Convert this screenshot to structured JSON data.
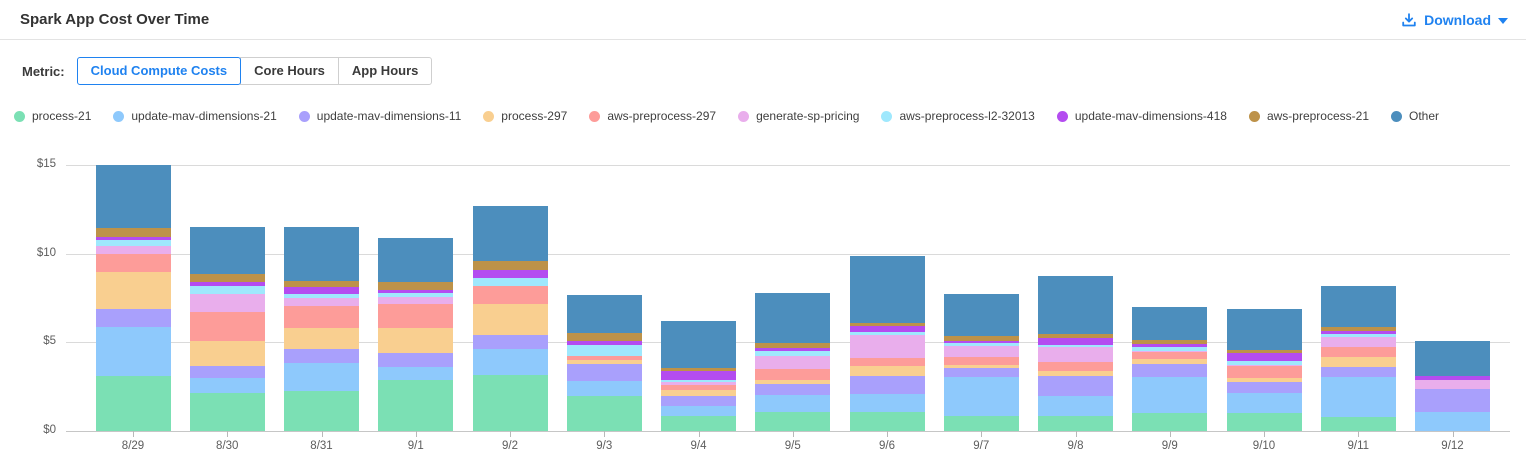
{
  "header": {
    "title": "Spark App Cost Over Time",
    "download": {
      "label": "Download",
      "icon": "download-icon",
      "caret_icon": "caret-down-icon"
    }
  },
  "metric": {
    "label": "Metric:",
    "options": [
      {
        "label": "Cloud Compute Costs",
        "active": true
      },
      {
        "label": "Core Hours",
        "active": false
      },
      {
        "label": "App Hours",
        "active": false
      }
    ]
  },
  "colors": {
    "accent_blue": "#1f82f0",
    "axis_text": "#5d5d5d",
    "gridline": "#dadada"
  },
  "chart_data": {
    "type": "bar",
    "stacked": true,
    "title": "Spark App Cost Over Time",
    "xlabel": "",
    "ylabel": "",
    "y_unit": "$",
    "ylim": [
      0,
      15
    ],
    "grid": true,
    "legend_position": "top",
    "y_ticks": [
      {
        "label": "$0",
        "value": 0
      },
      {
        "label": "$5",
        "value": 5
      },
      {
        "label": "$10",
        "value": 10
      },
      {
        "label": "$15",
        "value": 15
      }
    ],
    "categories": [
      "8/29",
      "8/30",
      "8/31",
      "9/1",
      "9/2",
      "9/3",
      "9/4",
      "9/5",
      "9/6",
      "9/7",
      "9/8",
      "9/9",
      "9/10",
      "9/11",
      "9/12"
    ],
    "series": [
      {
        "name": "process-21",
        "color": "#7be0b4",
        "values": [
          3.1,
          2.15,
          2.25,
          2.9,
          3.15,
          2.0,
          0.85,
          1.05,
          1.05,
          0.85,
          0.85,
          1.0,
          1.0,
          0.8,
          0.0
        ]
      },
      {
        "name": "update-mav-dimensions-21",
        "color": "#8ec9fc",
        "values": [
          2.75,
          0.85,
          1.6,
          0.7,
          1.5,
          0.8,
          0.55,
          1.0,
          1.05,
          2.2,
          1.15,
          2.05,
          1.15,
          2.25,
          1.1
        ]
      },
      {
        "name": "update-mav-dimensions-11",
        "color": "#a9a0fc",
        "values": [
          1.05,
          0.65,
          0.78,
          0.8,
          0.75,
          1.0,
          0.6,
          0.6,
          1.0,
          0.5,
          1.1,
          0.75,
          0.6,
          0.55,
          1.25
        ]
      },
      {
        "name": "process-297",
        "color": "#f9cf90",
        "values": [
          2.05,
          1.45,
          1.2,
          1.4,
          1.75,
          0.2,
          0.3,
          0.25,
          0.55,
          0.2,
          0.3,
          0.25,
          0.25,
          0.6,
          0.0
        ]
      },
      {
        "name": "aws-preprocess-297",
        "color": "#fd9c99",
        "values": [
          1.05,
          1.6,
          1.25,
          1.35,
          1.05,
          0.25,
          0.3,
          0.6,
          0.45,
          0.45,
          0.5,
          0.4,
          0.65,
          0.55,
          0.0
        ]
      },
      {
        "name": "generate-sp-pricing",
        "color": "#e9aeec",
        "values": [
          0.45,
          1.05,
          0.4,
          0.4,
          0.0,
          0.0,
          0.15,
          0.75,
          1.3,
          0.6,
          0.85,
          0.08,
          0.05,
          0.55,
          0.5
        ]
      },
      {
        "name": "aws-preprocess-l2-32013",
        "color": "#9fe8fd",
        "values": [
          0.32,
          0.45,
          0.25,
          0.25,
          0.45,
          0.62,
          0.15,
          0.25,
          0.18,
          0.15,
          0.1,
          0.2,
          0.25,
          0.15,
          0.0
        ]
      },
      {
        "name": "update-mav-dimensions-418",
        "color": "#b44cf0",
        "values": [
          0.2,
          0.18,
          0.38,
          0.15,
          0.42,
          0.2,
          0.5,
          0.2,
          0.33,
          0.15,
          0.4,
          0.2,
          0.45,
          0.2,
          0.25
        ]
      },
      {
        "name": "aws-preprocess-21",
        "color": "#bd9249",
        "values": [
          0.5,
          0.5,
          0.35,
          0.45,
          0.52,
          0.48,
          0.15,
          0.25,
          0.19,
          0.25,
          0.2,
          0.18,
          0.2,
          0.2,
          0.0
        ]
      },
      {
        "name": "Other",
        "color": "#4c8ebd",
        "values": [
          3.53,
          2.62,
          3.04,
          2.5,
          3.11,
          2.15,
          2.65,
          2.85,
          3.8,
          2.4,
          3.3,
          1.89,
          2.3,
          2.35,
          1.95
        ]
      }
    ]
  }
}
